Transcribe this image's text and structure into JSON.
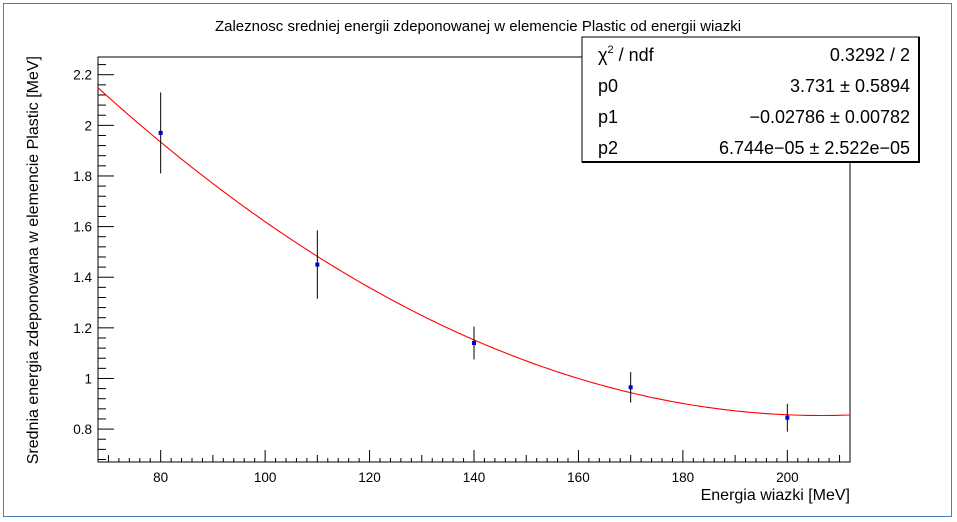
{
  "chart_data": {
    "type": "scatter",
    "title": "Zaleznosc sredniej energii zdeponowanej w elemencie Plastic od energii wiazki",
    "xlabel": "Energia wiazki [MeV]",
    "ylabel": "Srednia energia zdeponowana w elemencie Plastic [MeV]",
    "xlim": [
      68,
      212
    ],
    "ylim": [
      0.67,
      2.27
    ],
    "x_ticks": [
      80,
      100,
      120,
      140,
      160,
      180,
      200
    ],
    "y_ticks": [
      0.8,
      1,
      1.2,
      1.4,
      1.6,
      1.8,
      2,
      2.2
    ],
    "x_tick_labels": [
      "80",
      "100",
      "120",
      "140",
      "160",
      "180",
      "200"
    ],
    "y_tick_labels": [
      "0.8",
      "1",
      "1.2",
      "1.4",
      "1.6",
      "1.8",
      "2",
      "2.2"
    ],
    "series": [
      {
        "x": [
          80,
          110,
          140,
          170,
          200
        ],
        "y": [
          1.97,
          1.45,
          1.14,
          0.965,
          0.845
        ],
        "yerr": [
          0.16,
          0.135,
          0.065,
          0.06,
          0.055
        ],
        "color": "#0000cc"
      }
    ],
    "fit": {
      "function": "pol2",
      "color": "#ff0000",
      "x_range": [
        68,
        212
      ],
      "p0": 3.731,
      "p1": -0.02786,
      "p2": 6.744e-05
    },
    "stats_box": {
      "position": "top-right",
      "rows": [
        {
          "label_base": "χ",
          "label_sup": "2",
          "label_rest": " / ndf",
          "value": "0.3292 / 2"
        },
        {
          "label": "p0",
          "value": "3.731 ± 0.5894"
        },
        {
          "label": "p1",
          "value": "−0.02786 ± 0.00782"
        },
        {
          "label": "p2",
          "value": "6.744e−05 ± 2.522e−05"
        }
      ]
    },
    "grid": false
  }
}
